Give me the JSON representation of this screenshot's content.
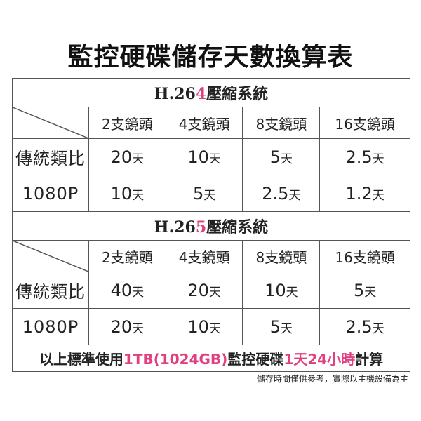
{
  "title": "監控硬碟儲存天數換算表",
  "colors": {
    "accent": "#e0407f"
  },
  "sections": [
    {
      "prefix": "H.26",
      "highlight": "4",
      "suffix": "壓縮系統",
      "headers": [
        "2支鏡頭",
        "4支鏡頭",
        "8支鏡頭",
        "16支鏡頭"
      ],
      "rows": [
        {
          "label": "傳統類比",
          "values": [
            "20",
            "10",
            "5",
            "2.5"
          ]
        },
        {
          "label": "1080P",
          "values": [
            "10",
            "5",
            "2.5",
            "1.2"
          ]
        }
      ]
    },
    {
      "prefix": "H.26",
      "highlight": "5",
      "suffix": "壓縮系統",
      "headers": [
        "2支鏡頭",
        "4支鏡頭",
        "8支鏡頭",
        "16支鏡頭"
      ],
      "rows": [
        {
          "label": "傳統類比",
          "values": [
            "40",
            "20",
            "10",
            "5"
          ]
        },
        {
          "label": "1080P",
          "values": [
            "20",
            "10",
            "5",
            "2.5"
          ]
        }
      ]
    }
  ],
  "unit": "天",
  "footer": {
    "p1": "以上標準使用",
    "h1": "1TB(1024GB)",
    "p2": "監控硬碟",
    "h2": "1天24小時",
    "p3": "計算"
  },
  "note": "儲存時間僅供參考，實際以主機設備為主"
}
